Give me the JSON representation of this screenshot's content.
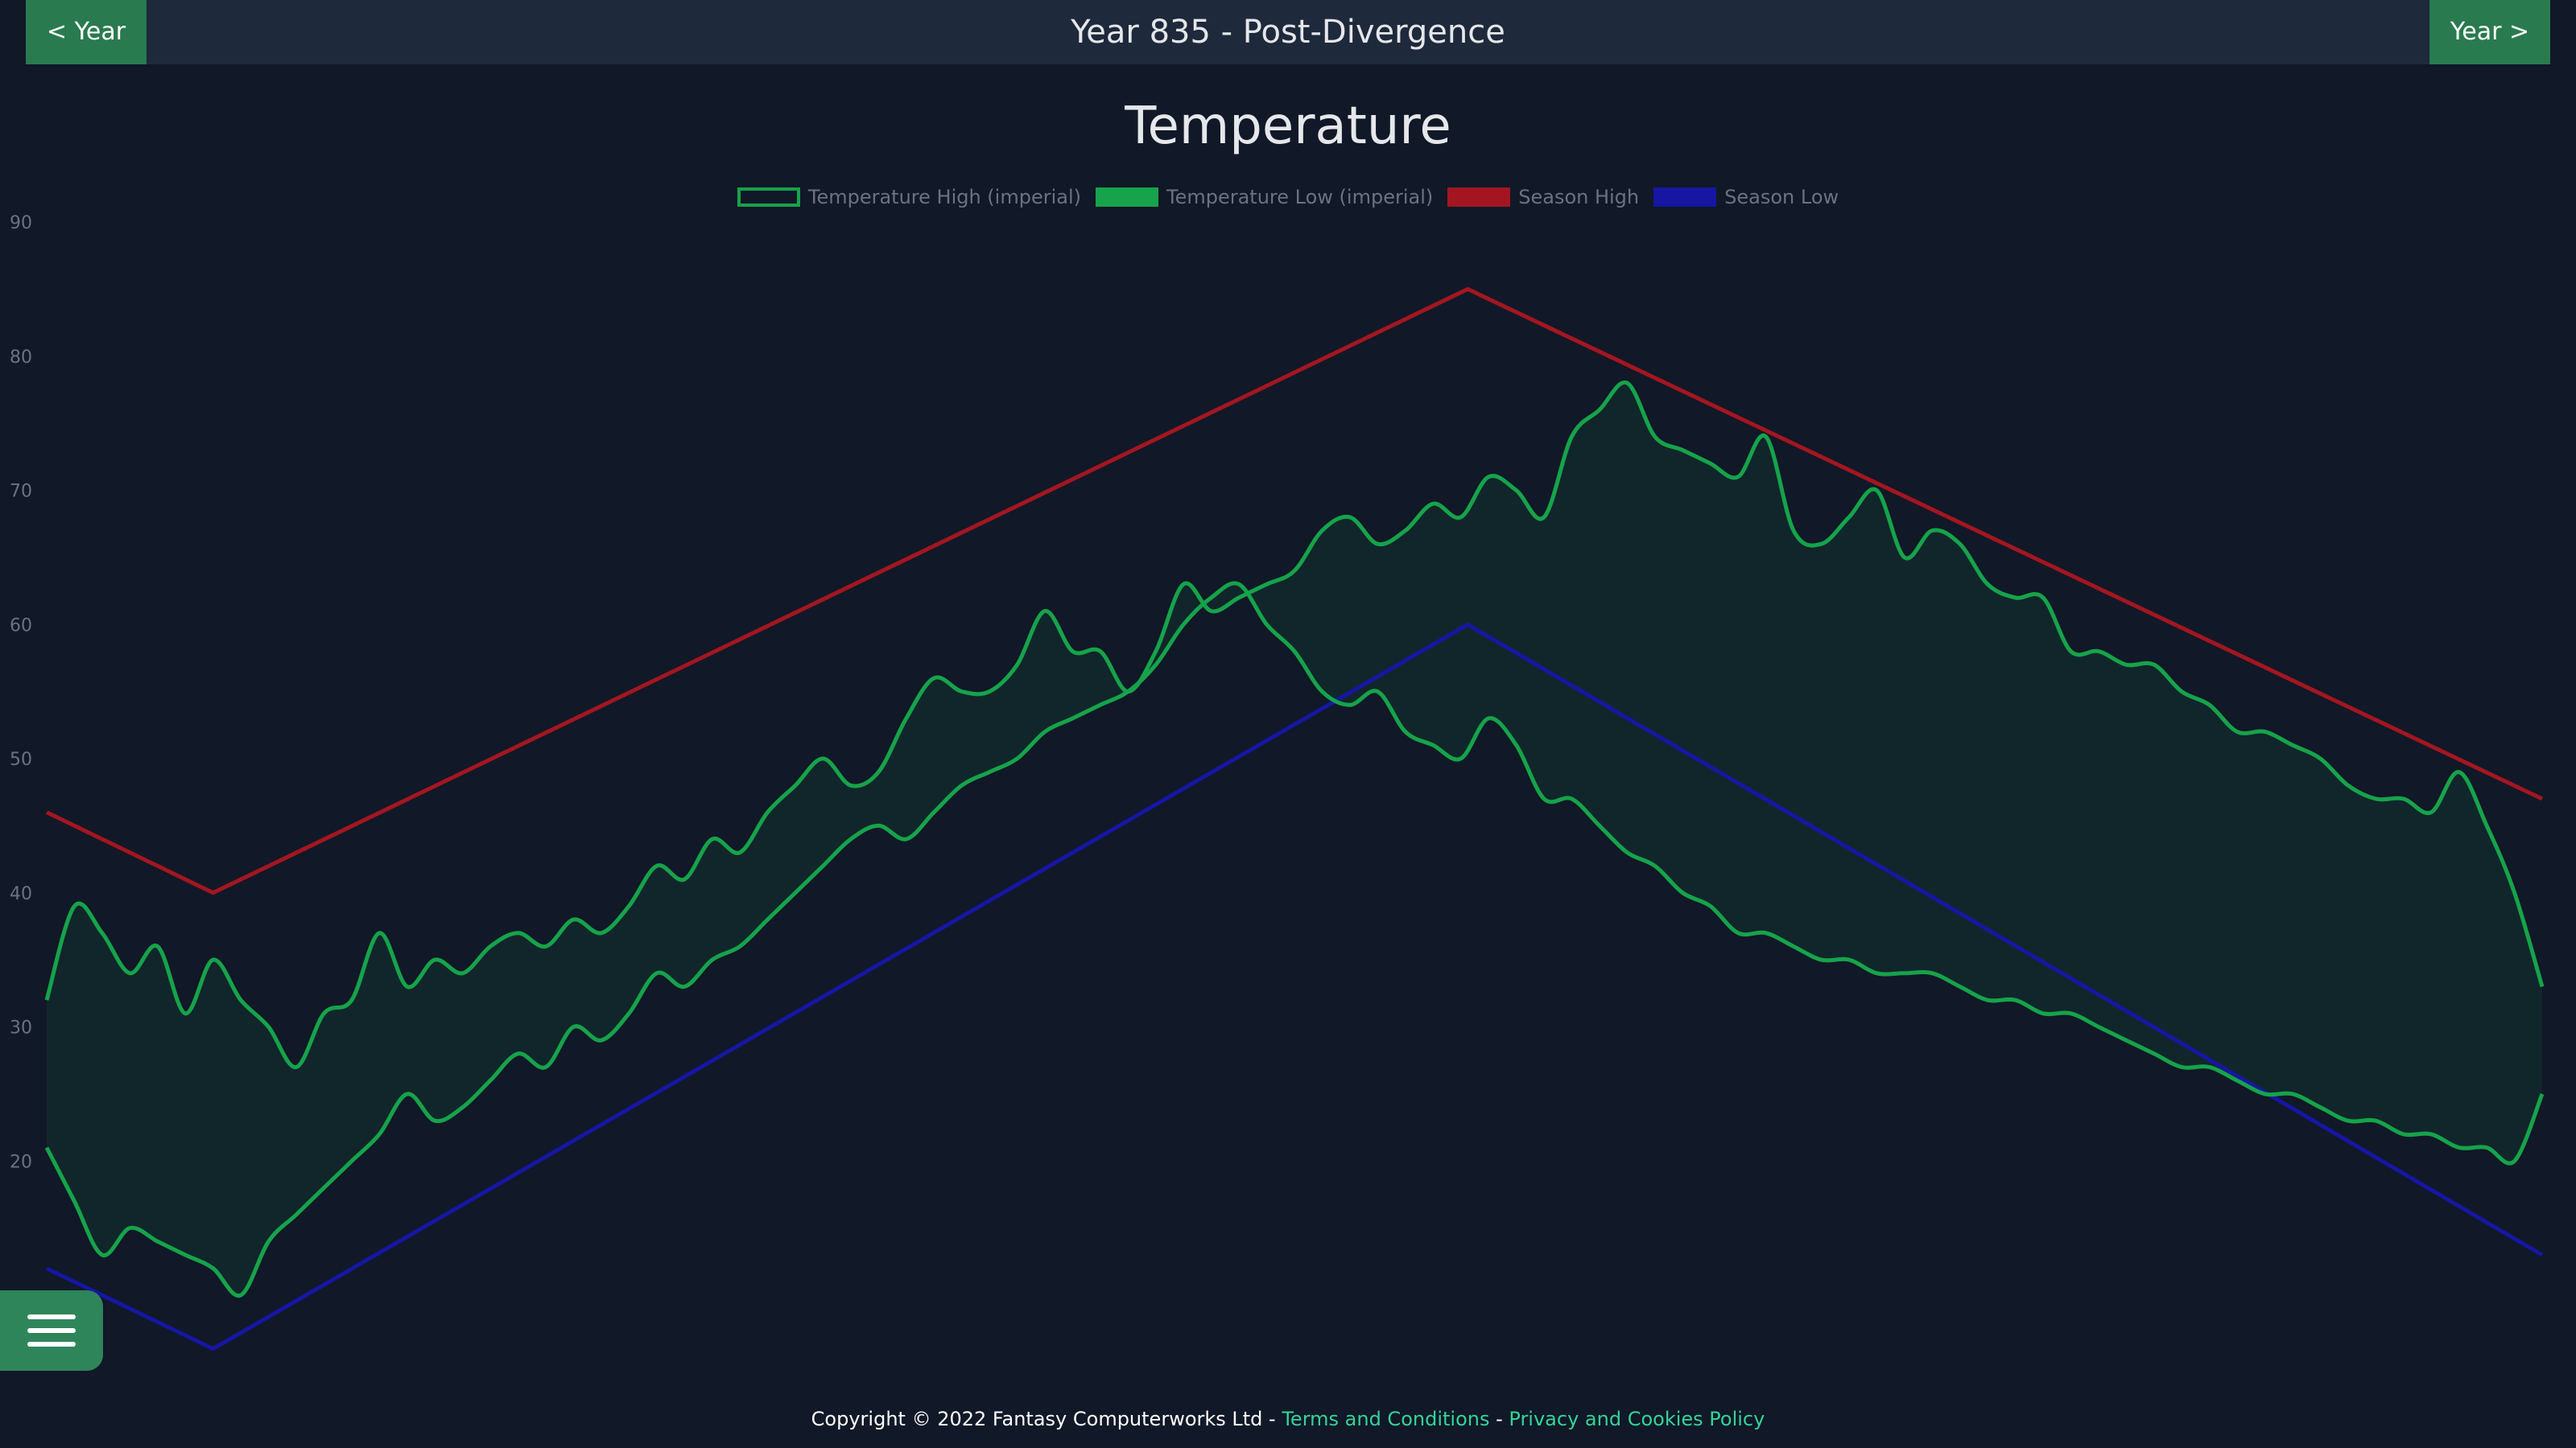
{
  "nav": {
    "prev_label": "< Year",
    "next_label": "Year >",
    "title": "Year 835 - Post-Divergence"
  },
  "chart_title": "Temperature",
  "legend": [
    {
      "label": "Temperature High (imperial)",
      "color": "#16a34a",
      "fill": "transparent"
    },
    {
      "label": "Temperature Low (imperial)",
      "color": "#16a34a",
      "fill": "#16a34a"
    },
    {
      "label": "Season High",
      "color": "#a31621",
      "fill": "#a31621"
    },
    {
      "label": "Season Low",
      "color": "#1616a3",
      "fill": "#1616a3"
    }
  ],
  "footer": {
    "copyright": "Copyright © 2022 Fantasy Computerworks Ltd - ",
    "terms_label": "Terms and Conditions",
    "separator": " - ",
    "privacy_label": "Privacy and Cookies Policy"
  },
  "menu": {
    "icon": "hamburger-menu-icon"
  },
  "colors": {
    "background": "#111827",
    "nav_bg": "#1e293b",
    "button_green": "#2a7a4f",
    "series_green": "#16a34a",
    "season_high": "#a31621",
    "season_low": "#1616a3",
    "band_fill": "rgba(22,163,74,0.10)",
    "link": "#34d399"
  },
  "chart_data": {
    "type": "line",
    "title": "Temperature",
    "xlabel": "",
    "ylabel": "",
    "ylim": [
      10,
      90
    ],
    "yticks": [
      90,
      80,
      70,
      60,
      50,
      40,
      30,
      20
    ],
    "grid": false,
    "legend_placement": "top-center",
    "x_range": [
      0,
      360
    ],
    "series": [
      {
        "name": "Temperature High (imperial)",
        "x": [
          0,
          4,
          8,
          12,
          16,
          20,
          24,
          28,
          32,
          36,
          40,
          44,
          48,
          52,
          56,
          60,
          64,
          68,
          72,
          76,
          80,
          84,
          88,
          92,
          96,
          100,
          104,
          108,
          112,
          116,
          120,
          124,
          128,
          132,
          136,
          140,
          144,
          148,
          152,
          156,
          160,
          164,
          168,
          172,
          176,
          180,
          184,
          188,
          192,
          196,
          200,
          204,
          208,
          212,
          216,
          220,
          224,
          228,
          232,
          236,
          240,
          244,
          248,
          252,
          256,
          260,
          264,
          268,
          272,
          276,
          280,
          284,
          288,
          292,
          296,
          300,
          304,
          308,
          312,
          316,
          320,
          324,
          328,
          332,
          336,
          340,
          344,
          348,
          352,
          356,
          360
        ],
        "values": [
          32,
          39,
          37,
          34,
          36,
          31,
          35,
          32,
          30,
          27,
          31,
          32,
          37,
          33,
          35,
          34,
          36,
          37,
          36,
          38,
          37,
          39,
          42,
          41,
          44,
          43,
          46,
          48,
          50,
          48,
          49,
          53,
          56,
          55,
          55,
          57,
          61,
          58,
          58,
          55,
          58,
          63,
          61,
          62,
          63,
          64,
          67,
          68,
          66,
          67,
          69,
          68,
          71,
          70,
          68,
          74,
          76,
          78,
          74,
          73,
          72,
          71,
          74,
          67,
          66,
          68,
          70,
          65,
          67,
          66,
          63,
          62,
          62,
          58,
          58,
          57,
          57,
          55,
          54,
          52,
          52,
          51,
          50,
          48,
          47,
          47,
          46,
          49,
          45,
          40,
          33
        ]
      },
      {
        "name": "Temperature Low (imperial)",
        "x": [
          0,
          4,
          8,
          12,
          16,
          20,
          24,
          28,
          32,
          36,
          40,
          44,
          48,
          52,
          56,
          60,
          64,
          68,
          72,
          76,
          80,
          84,
          88,
          92,
          96,
          100,
          104,
          108,
          112,
          116,
          120,
          124,
          128,
          132,
          136,
          140,
          144,
          148,
          152,
          156,
          160,
          164,
          168,
          172,
          176,
          180,
          184,
          188,
          192,
          196,
          200,
          204,
          208,
          212,
          216,
          220,
          224,
          228,
          232,
          236,
          240,
          244,
          248,
          252,
          256,
          260,
          264,
          268,
          272,
          276,
          280,
          284,
          288,
          292,
          296,
          300,
          304,
          308,
          312,
          316,
          320,
          324,
          328,
          332,
          336,
          340,
          344,
          348,
          352,
          356,
          360
        ],
        "values": [
          21,
          17,
          13,
          15,
          14,
          13,
          12,
          10,
          14,
          16,
          18,
          20,
          22,
          25,
          23,
          24,
          26,
          28,
          27,
          30,
          29,
          31,
          34,
          33,
          35,
          36,
          38,
          40,
          42,
          44,
          45,
          44,
          46,
          48,
          49,
          50,
          52,
          53,
          54,
          55,
          57,
          60,
          62,
          63,
          60,
          58,
          55,
          54,
          55,
          52,
          51,
          50,
          53,
          51,
          47,
          47,
          45,
          43,
          42,
          40,
          39,
          37,
          37,
          36,
          35,
          35,
          34,
          34,
          34,
          33,
          32,
          32,
          31,
          31,
          30,
          29,
          28,
          27,
          27,
          26,
          25,
          25,
          24,
          23,
          23,
          22,
          22,
          21,
          21,
          20,
          25
        ]
      },
      {
        "name": "Season High",
        "x": [
          0,
          24,
          205,
          360
        ],
        "values": [
          46,
          40,
          85,
          47
        ]
      },
      {
        "name": "Season Low",
        "x": [
          0,
          24,
          205,
          360
        ],
        "values": [
          12,
          6,
          60,
          13
        ]
      }
    ]
  }
}
